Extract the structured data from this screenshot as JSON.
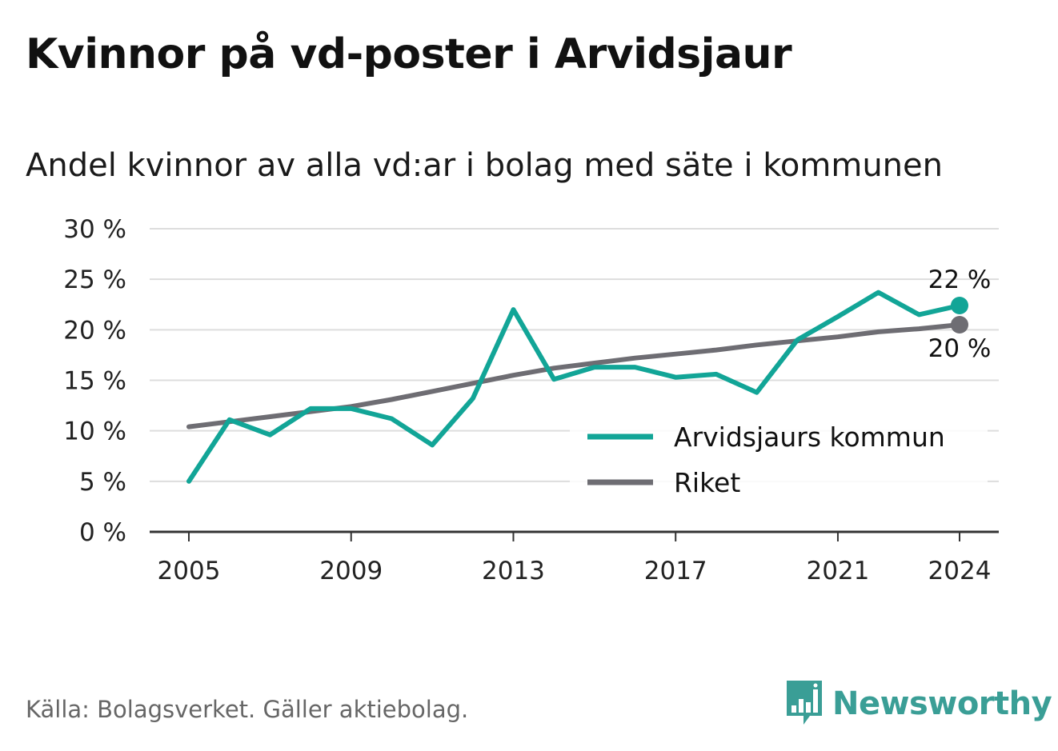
{
  "header": {
    "title": "Kvinnor på vd-poster i Arvidsjaur",
    "subtitle": "Andel kvinnor av alla vd:ar i bolag med säte i kommunen"
  },
  "footer": {
    "source": "Källa: Bolagsverket. Gäller aktiebolag.",
    "brand": "Newsworthy",
    "brand_icon": "bar-chart-speech-bubble-icon"
  },
  "colors": {
    "kommun": "#12a597",
    "riket": "#6e6d73",
    "grid": "#dddddd",
    "axis": "#333333",
    "brand": "#3a9e96"
  },
  "chart_data": {
    "type": "line",
    "title": "Kvinnor på vd-poster i Arvidsjaur",
    "subtitle": "Andel kvinnor av alla vd:ar i bolag med säte i kommunen",
    "xlabel": "",
    "ylabel": "",
    "x": [
      2005,
      2006,
      2007,
      2008,
      2009,
      2010,
      2011,
      2012,
      2013,
      2014,
      2015,
      2016,
      2017,
      2018,
      2019,
      2020,
      2021,
      2022,
      2023,
      2024
    ],
    "x_ticks": [
      "2005",
      "2009",
      "2013",
      "2017",
      "2021",
      "2024"
    ],
    "y_ticks": [
      "0 %",
      "5 %",
      "10 %",
      "15 %",
      "20 %",
      "25 %",
      "30 %"
    ],
    "ylim": [
      0,
      30
    ],
    "grid": true,
    "legend": "bottom-right",
    "series": [
      {
        "name": "Arvidsjaurs kommun",
        "color": "#12a597",
        "values": [
          5.0,
          11.1,
          9.6,
          12.2,
          12.2,
          11.2,
          8.6,
          13.2,
          22.0,
          15.1,
          16.3,
          16.3,
          15.3,
          15.6,
          13.8,
          19.0,
          21.3,
          23.7,
          21.5,
          22.4
        ],
        "end_label": "22 %"
      },
      {
        "name": "Riket",
        "color": "#6e6d73",
        "values": [
          10.4,
          10.9,
          11.4,
          11.9,
          12.4,
          13.1,
          13.9,
          14.7,
          15.5,
          16.2,
          16.7,
          17.2,
          17.6,
          18.0,
          18.5,
          18.9,
          19.3,
          19.8,
          20.1,
          20.5
        ],
        "end_label": "20 %"
      }
    ]
  }
}
